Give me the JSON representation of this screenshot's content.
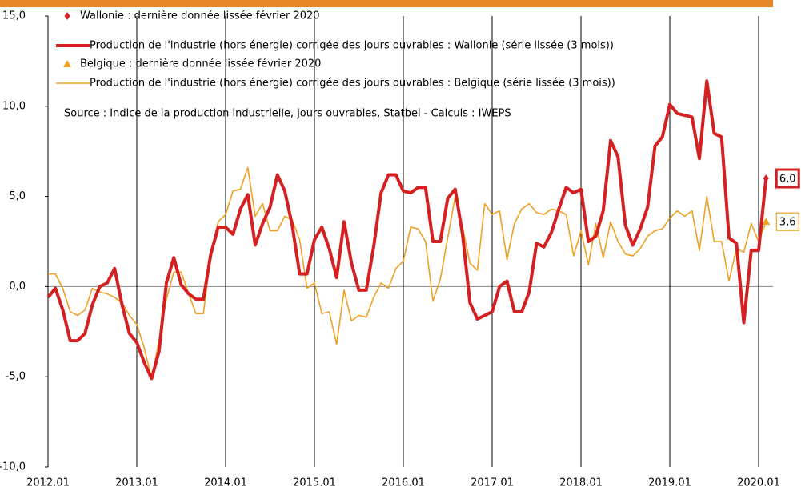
{
  "chart_data": {
    "type": "line",
    "categories": [
      "2012.01",
      null,
      null,
      null,
      null,
      null,
      null,
      null,
      null,
      null,
      null,
      null,
      "2013.01",
      null,
      null,
      null,
      null,
      null,
      null,
      null,
      null,
      null,
      null,
      null,
      "2014.01",
      null,
      null,
      null,
      null,
      null,
      null,
      null,
      null,
      null,
      null,
      null,
      "2015.01",
      null,
      null,
      null,
      null,
      null,
      null,
      null,
      null,
      null,
      null,
      null,
      "2016.01",
      null,
      null,
      null,
      null,
      null,
      null,
      null,
      null,
      null,
      null,
      null,
      "2017.01",
      null,
      null,
      null,
      null,
      null,
      null,
      null,
      null,
      null,
      null,
      null,
      "2018.01",
      null,
      null,
      null,
      null,
      null,
      null,
      null,
      null,
      null,
      null,
      null,
      "2019.01",
      null,
      null,
      null,
      null,
      null,
      null,
      null,
      null,
      null,
      null,
      null,
      "2020.01",
      null
    ],
    "series": [
      {
        "name": "Production de l'industrie (hors énergie) corrigée des jours ouvrables : Wallonie (série lissée (3 mois))",
        "marker_name": "Wallonie : dernière donnée lissée février 2020",
        "marker": "diamond",
        "color": "#d42020",
        "width": 4,
        "values": [
          -0.6,
          -0.1,
          -1.3,
          -3.0,
          -3.0,
          -2.6,
          -1.0,
          0.0,
          0.2,
          1.0,
          -1.0,
          -2.6,
          -3.1,
          -4.2,
          -5.1,
          -3.6,
          0.2,
          1.6,
          0.1,
          -0.4,
          -0.7,
          -0.7,
          1.8,
          3.3,
          3.3,
          2.9,
          4.3,
          5.1,
          2.3,
          3.5,
          4.4,
          6.2,
          5.3,
          3.4,
          0.7,
          0.7,
          2.6,
          3.3,
          2.1,
          0.5,
          3.6,
          1.3,
          -0.2,
          -0.2,
          2.2,
          5.2,
          6.2,
          6.2,
          5.3,
          5.2,
          5.5,
          5.5,
          2.5,
          2.5,
          4.9,
          5.4,
          2.9,
          -0.9,
          -1.8,
          -1.6,
          -1.4,
          0.0,
          0.3,
          -1.4,
          -1.4,
          -0.3,
          2.4,
          2.2,
          3.0,
          4.3,
          5.5,
          5.2,
          5.4,
          2.5,
          2.8,
          4.2,
          8.1,
          7.2,
          3.4,
          2.3,
          3.2,
          4.4,
          7.8,
          8.3,
          10.1,
          9.6,
          9.5,
          9.4,
          7.1,
          11.4,
          8.5,
          8.3,
          2.7,
          2.4,
          -2.0,
          2.0,
          2.0,
          6.0
        ],
        "value_labels": [
          null,
          null,
          null,
          null,
          null,
          null,
          null,
          null,
          null,
          null,
          null,
          null,
          null,
          null,
          null,
          null,
          null,
          null,
          null,
          null,
          null,
          null,
          null,
          null,
          null,
          null,
          null,
          null,
          null,
          null,
          null,
          null,
          null,
          null,
          null,
          null,
          null,
          null,
          null,
          null,
          null,
          null,
          null,
          null,
          null,
          null,
          null,
          null,
          null,
          null,
          null,
          null,
          null,
          null,
          null,
          null,
          null,
          null,
          null,
          null,
          null,
          null,
          null,
          null,
          null,
          null,
          null,
          null,
          null,
          null,
          null,
          null,
          null,
          null,
          null,
          null,
          null,
          null,
          null,
          null,
          null,
          null,
          null,
          null,
          null,
          null,
          null,
          null,
          null,
          null,
          null,
          null,
          null,
          null,
          null,
          null,
          null,
          "6,0"
        ]
      },
      {
        "name": "Production de l'industrie (hors énergie) corrigée des jours ouvrables : Belgique (série lissée (3 mois))",
        "marker_name": "Belgique : dernière donnée lissée février 2020",
        "marker": "triangle",
        "color": "#f0a020",
        "width": 1.6,
        "values": [
          0.7,
          0.7,
          -0.1,
          -1.4,
          -1.6,
          -1.3,
          -0.1,
          -0.3,
          -0.4,
          -0.6,
          -0.9,
          -1.6,
          -2.1,
          -3.4,
          -5.1,
          -3.0,
          -0.7,
          0.8,
          0.8,
          -0.4,
          -1.5,
          -1.5,
          1.8,
          3.6,
          4.0,
          5.3,
          5.4,
          6.6,
          3.9,
          4.6,
          3.1,
          3.1,
          3.9,
          3.7,
          2.6,
          -0.1,
          0.2,
          -1.5,
          -1.4,
          -3.2,
          -0.2,
          -1.9,
          -1.6,
          -1.7,
          -0.6,
          0.2,
          -0.1,
          1.0,
          1.4,
          3.3,
          3.2,
          2.5,
          -0.8,
          0.4,
          2.7,
          5.0,
          3.3,
          1.3,
          0.9,
          4.6,
          4.0,
          4.2,
          1.5,
          3.5,
          4.3,
          4.6,
          4.1,
          4.0,
          4.3,
          4.2,
          4.0,
          1.7,
          3.1,
          1.2,
          3.5,
          1.6,
          3.6,
          2.5,
          1.8,
          1.7,
          2.1,
          2.8,
          3.1,
          3.2,
          3.8,
          4.2,
          3.9,
          4.2,
          2.0,
          5.0,
          2.5,
          2.5,
          0.3,
          2.1,
          1.9,
          3.5,
          2.5,
          3.6
        ],
        "value_labels": [
          null,
          null,
          null,
          null,
          null,
          null,
          null,
          null,
          null,
          null,
          null,
          null,
          null,
          null,
          null,
          null,
          null,
          null,
          null,
          null,
          null,
          null,
          null,
          null,
          null,
          null,
          null,
          null,
          null,
          null,
          null,
          null,
          null,
          null,
          null,
          null,
          null,
          null,
          null,
          null,
          null,
          null,
          null,
          null,
          null,
          null,
          null,
          null,
          null,
          null,
          null,
          null,
          null,
          null,
          null,
          null,
          null,
          null,
          null,
          null,
          null,
          null,
          null,
          null,
          null,
          null,
          null,
          null,
          null,
          null,
          null,
          null,
          null,
          null,
          null,
          null,
          null,
          null,
          null,
          null,
          null,
          null,
          null,
          null,
          null,
          null,
          null,
          null,
          null,
          null,
          null,
          null,
          null,
          null,
          null,
          null,
          null,
          "3,6"
        ]
      }
    ],
    "annotation": "Source : Indice de la production industrielle, jours ouvrables, Statbel - Calculs : IWEPS",
    "ylim": [
      -10,
      15
    ],
    "yticks": [
      {
        "value": -10,
        "label": "-10,0"
      },
      {
        "value": -5,
        "label": "-5,0"
      },
      {
        "value": 0,
        "label": "0,0"
      },
      {
        "value": 5,
        "label": "5,0"
      },
      {
        "value": 10,
        "label": "10,0"
      },
      {
        "value": 15,
        "label": "15,0"
      }
    ],
    "grid": "vertical"
  }
}
